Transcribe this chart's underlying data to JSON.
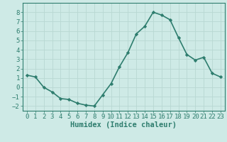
{
  "x": [
    0,
    1,
    2,
    3,
    4,
    5,
    6,
    7,
    8,
    9,
    10,
    11,
    12,
    13,
    14,
    15,
    16,
    17,
    18,
    19,
    20,
    21,
    22,
    23
  ],
  "y": [
    1.3,
    1.1,
    0.0,
    -0.5,
    -1.2,
    -1.3,
    -1.7,
    -1.9,
    -2.0,
    -0.8,
    0.4,
    2.2,
    3.7,
    5.7,
    6.5,
    8.0,
    7.7,
    7.2,
    5.3,
    3.5,
    2.9,
    3.2,
    1.5,
    1.1
  ],
  "line_color": "#2e7d6e",
  "marker": "D",
  "marker_size": 2.2,
  "line_width": 1.2,
  "bg_color": "#ceeae6",
  "grid_color": "#b8d8d2",
  "xlabel": "Humidex (Indice chaleur)",
  "xlabel_fontsize": 7.5,
  "tick_fontsize": 6.5,
  "ylim": [
    -2.5,
    9.0
  ],
  "xlim": [
    -0.5,
    23.5
  ],
  "yticks": [
    -2,
    -1,
    0,
    1,
    2,
    3,
    4,
    5,
    6,
    7,
    8
  ],
  "xticks": [
    0,
    1,
    2,
    3,
    4,
    5,
    6,
    7,
    8,
    9,
    10,
    11,
    12,
    13,
    14,
    15,
    16,
    17,
    18,
    19,
    20,
    21,
    22,
    23
  ]
}
